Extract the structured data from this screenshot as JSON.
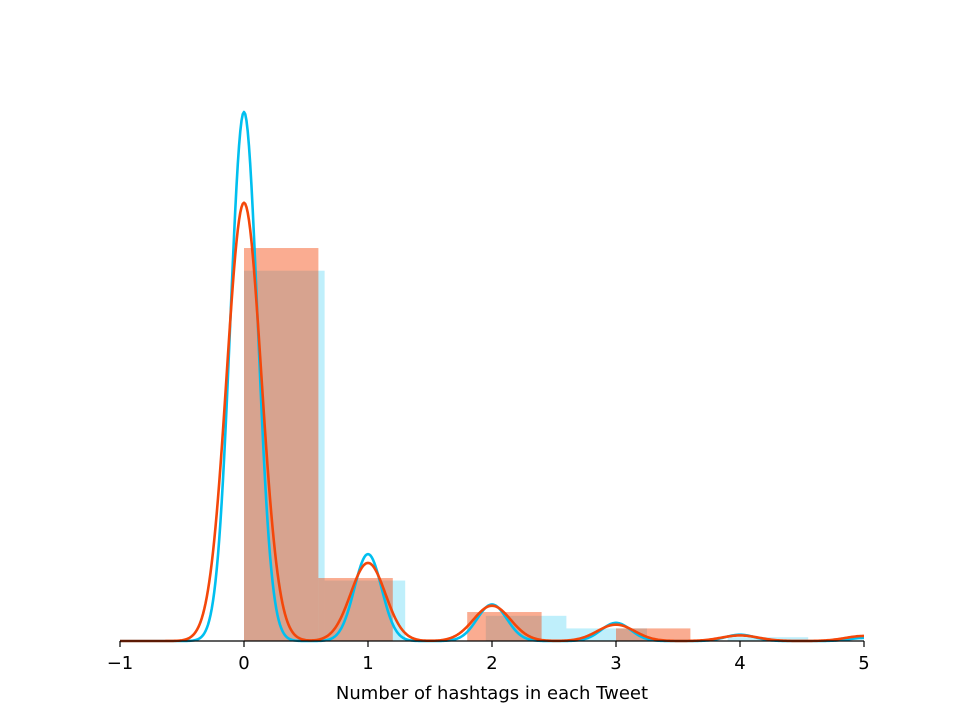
{
  "chart_data": {
    "type": "bar",
    "xlabel": "Number of hashtags in each Tweet",
    "ylabel": "",
    "title": "",
    "xlim": [
      -1,
      5
    ],
    "ylim": [
      0,
      2.1
    ],
    "x_ticks": [
      -1,
      0,
      1,
      2,
      3,
      4,
      5
    ],
    "x_tick_labels": [
      "−1",
      "0",
      "1",
      "2",
      "3",
      "4",
      "5"
    ],
    "grid": false,
    "legend": "none",
    "series": [
      {
        "color": "#00bfef",
        "hist_alpha": 0.25,
        "bins": [
          {
            "x0": 0.0,
            "x1": 0.65,
            "height": 1.47
          },
          {
            "x0": 0.65,
            "x1": 1.3,
            "height": 0.24
          },
          {
            "x0": 1.3,
            "x1": 1.95,
            "height": 0.0
          },
          {
            "x0": 1.95,
            "x1": 2.6,
            "height": 0.1
          },
          {
            "x0": 2.6,
            "x1": 3.25,
            "height": 0.05
          },
          {
            "x0": 3.25,
            "x1": 3.9,
            "height": 0.0
          },
          {
            "x0": 3.9,
            "x1": 4.55,
            "height": 0.015
          }
        ],
        "kde_peaks": [
          {
            "center": 0,
            "height": 2.1,
            "sigma": 0.11
          },
          {
            "center": 1,
            "height": 0.345,
            "sigma": 0.11
          },
          {
            "center": 2,
            "height": 0.145,
            "sigma": 0.12
          },
          {
            "center": 3,
            "height": 0.072,
            "sigma": 0.12
          },
          {
            "center": 4,
            "height": 0.025,
            "sigma": 0.12
          },
          {
            "center": 5,
            "height": 0.012,
            "sigma": 0.12
          }
        ]
      },
      {
        "color": "#f4470a",
        "hist_alpha": 0.45,
        "bins": [
          {
            "x0": 0.0,
            "x1": 0.6,
            "height": 1.56
          },
          {
            "x0": 0.6,
            "x1": 1.2,
            "height": 0.25
          },
          {
            "x0": 1.2,
            "x1": 1.8,
            "height": 0.0
          },
          {
            "x0": 1.8,
            "x1": 2.4,
            "height": 0.115
          },
          {
            "x0": 2.4,
            "x1": 3.0,
            "height": 0.0
          },
          {
            "x0": 3.0,
            "x1": 3.6,
            "height": 0.05
          }
        ],
        "kde_peaks": [
          {
            "center": 0,
            "height": 1.74,
            "sigma": 0.14
          },
          {
            "center": 1,
            "height": 0.31,
            "sigma": 0.14
          },
          {
            "center": 2,
            "height": 0.14,
            "sigma": 0.15
          },
          {
            "center": 3,
            "height": 0.065,
            "sigma": 0.15
          },
          {
            "center": 4,
            "height": 0.022,
            "sigma": 0.15
          },
          {
            "center": 5,
            "height": 0.02,
            "sigma": 0.15
          }
        ]
      }
    ]
  }
}
